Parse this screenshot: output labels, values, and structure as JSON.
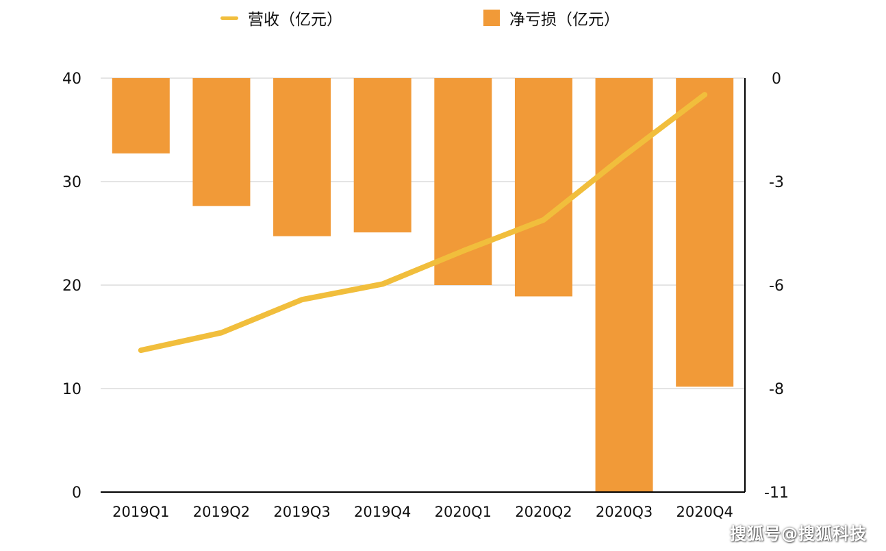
{
  "colors": {
    "revenue_line": "#F1BE3C",
    "net_loss_bar": "#F19A38",
    "grid": "#C8C8C8",
    "axis": "#000000",
    "text": "#111111"
  },
  "legend": {
    "revenue_label": "营收（亿元）",
    "net_loss_label": "净亏损（亿元）"
  },
  "watermark": "搜狐号@搜狐科技",
  "chart_data": {
    "type": "bar",
    "categories": [
      "2019Q1",
      "2019Q2",
      "2019Q3",
      "2019Q4",
      "2020Q1",
      "2020Q2",
      "2020Q3",
      "2020Q4"
    ],
    "series": [
      {
        "name": "营收（亿元）",
        "type": "line",
        "axis": "left",
        "values": [
          13.7,
          15.4,
          18.6,
          20.1,
          23.3,
          26.3,
          32.5,
          38.4
        ]
      },
      {
        "name": "净亏损（亿元）",
        "type": "bar",
        "axis": "right",
        "values": [
          -2.0,
          -3.4,
          -4.2,
          -4.1,
          -5.5,
          -5.8,
          -11.0,
          -8.2
        ]
      }
    ],
    "y_left": {
      "ylim": [
        0,
        40
      ],
      "ticks": [
        "0",
        "10",
        "20",
        "30",
        "40"
      ],
      "tick_values": [
        0,
        10,
        20,
        30,
        40
      ]
    },
    "y_right": {
      "ylim": [
        -11,
        0
      ],
      "ticks": [
        "-11",
        "-8",
        "-6",
        "-3",
        "0"
      ],
      "tick_values": [
        -11,
        -8.25,
        -5.5,
        -2.75,
        0
      ]
    },
    "grid": true,
    "legend_position": "top"
  }
}
